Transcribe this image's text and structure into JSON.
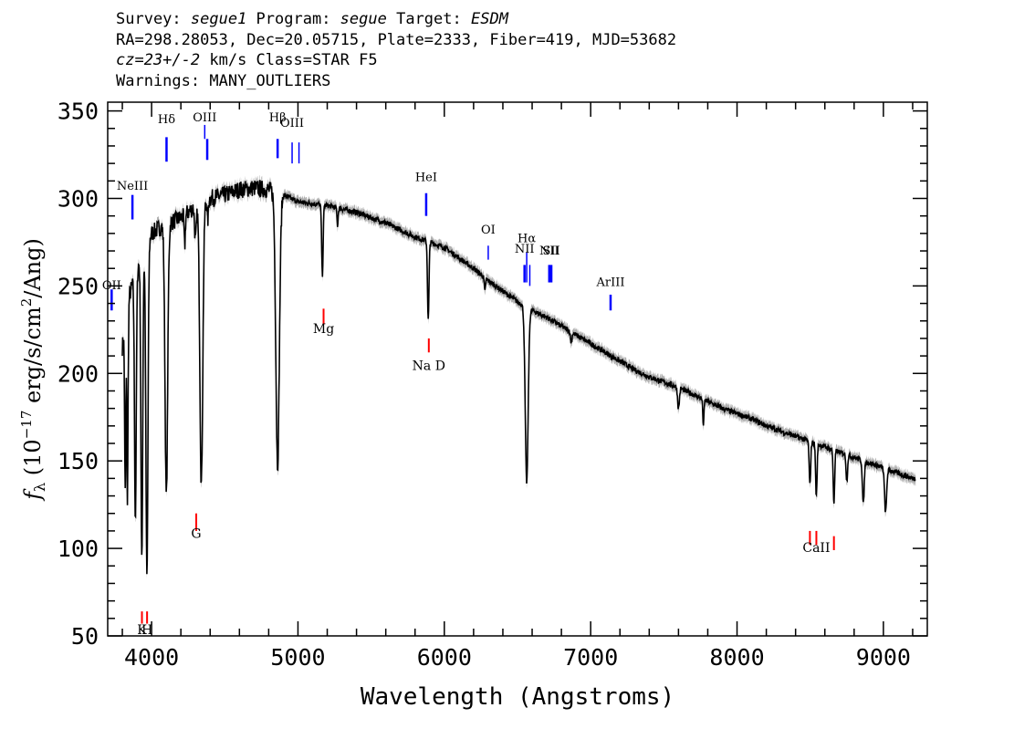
{
  "header": {
    "line1": {
      "survey_label": "Survey: ",
      "survey_value": "segue1",
      "program_label": " Program: ",
      "program_value": "segue",
      "target_label": " Target: ",
      "target_value": "ESDM"
    },
    "line2": "RA=298.28053, Dec=20.05715, Plate=2333, Fiber=419, MJD=53682",
    "line3": {
      "cz_value": "cz=23+/-2",
      "rest": " km/s Class=STAR F5"
    },
    "line4": "Warnings: MANY_OUTLIERS"
  },
  "chart_data": {
    "type": "line",
    "xlabel": "Wavelength (Angstroms)",
    "ylabel": {
      "prefix": "f",
      "sub": "λ",
      "unit_a": " (10",
      "exp": "−17",
      "unit_b": " erg/s/cm",
      "exp2": "2",
      "unit_c": "/Ang)"
    },
    "xlim": [
      3700,
      9300
    ],
    "ylim": [
      50,
      355
    ],
    "x_ticks": [
      4000,
      5000,
      6000,
      7000,
      8000,
      9000
    ],
    "x_tick_labels": [
      "4000",
      "5000",
      "6000",
      "7000",
      "8000",
      "9000"
    ],
    "y_ticks": [
      50,
      100,
      150,
      200,
      250,
      300,
      350
    ],
    "y_tick_labels": [
      "50",
      "100",
      "150",
      "200",
      "250",
      "300",
      "350"
    ],
    "continuum": {
      "x": [
        3800,
        3850,
        3900,
        3950,
        4000,
        4050,
        4100,
        4150,
        4200,
        4250,
        4300,
        4350,
        4400,
        4450,
        4500,
        4600,
        4700,
        4800,
        4900,
        5000,
        5100,
        5200,
        5300,
        5400,
        5500,
        5600,
        5700,
        5800,
        5900,
        6000,
        6100,
        6200,
        6300,
        6400,
        6500,
        6600,
        6700,
        6800,
        6900,
        7000,
        7100,
        7200,
        7300,
        7400,
        7500,
        7600,
        7700,
        7800,
        7900,
        8000,
        8100,
        8200,
        8300,
        8400,
        8500,
        8600,
        8700,
        8800,
        8900,
        9000,
        9100,
        9200
      ],
      "y": [
        215,
        245,
        260,
        270,
        280,
        283,
        285,
        287,
        289,
        292,
        296,
        298,
        300,
        301,
        302,
        305,
        306,
        305,
        302,
        298,
        297,
        296,
        294,
        292,
        289,
        286,
        282,
        278,
        275,
        272,
        266,
        260,
        253,
        247,
        241,
        236,
        232,
        227,
        222,
        217,
        212,
        207,
        202,
        198,
        195,
        192,
        188,
        184,
        180,
        177,
        174,
        170,
        167,
        164,
        161,
        158,
        155,
        152,
        149,
        146,
        143,
        140
      ]
    },
    "absorption_lines": [
      {
        "x": 3820,
        "depth": 95,
        "width": 4
      },
      {
        "x": 3835,
        "depth": 110,
        "width": 4
      },
      {
        "x": 3889,
        "depth": 140,
        "width": 6
      },
      {
        "x": 3933,
        "depth": 175,
        "width": 6
      },
      {
        "x": 3968,
        "depth": 190,
        "width": 7
      },
      {
        "x": 4101,
        "depth": 155,
        "width": 9
      },
      {
        "x": 4226,
        "depth": 18,
        "width": 4
      },
      {
        "x": 4300,
        "depth": 20,
        "width": 6
      },
      {
        "x": 4340,
        "depth": 160,
        "width": 10
      },
      {
        "x": 4384,
        "depth": 12,
        "width": 4
      },
      {
        "x": 4861,
        "depth": 155,
        "width": 12
      },
      {
        "x": 5167,
        "depth": 40,
        "width": 5
      },
      {
        "x": 5270,
        "depth": 10,
        "width": 4
      },
      {
        "x": 5890,
        "depth": 45,
        "width": 5
      },
      {
        "x": 6277,
        "depth": 8,
        "width": 4
      },
      {
        "x": 6563,
        "depth": 100,
        "width": 10
      },
      {
        "x": 6867,
        "depth": 6,
        "width": 5
      },
      {
        "x": 7600,
        "depth": 12,
        "width": 6
      },
      {
        "x": 7770,
        "depth": 15,
        "width": 4
      },
      {
        "x": 8498,
        "depth": 25,
        "width": 5
      },
      {
        "x": 8542,
        "depth": 30,
        "width": 5
      },
      {
        "x": 8662,
        "depth": 30,
        "width": 5
      },
      {
        "x": 8750,
        "depth": 15,
        "width": 5
      },
      {
        "x": 8863,
        "depth": 25,
        "width": 6
      },
      {
        "x": 9015,
        "depth": 25,
        "width": 7
      }
    ],
    "emission_markers": [
      {
        "label": "OII",
        "x": 3727,
        "label_y": 248,
        "top": 248,
        "bottom": 236,
        "thick": true
      },
      {
        "label": "NeIII",
        "x": 3869,
        "label_y": 305,
        "top": 302,
        "bottom": 288,
        "thick": true
      },
      {
        "label": "Hδ",
        "x": 4102,
        "label_y": 343,
        "top": 335,
        "bottom": 321,
        "thick": true
      },
      {
        "label": "OIII",
        "x": 4363,
        "label_y": 344,
        "top": 342,
        "bottom": 334,
        "thick": false
      },
      {
        "label": "",
        "x": 4380,
        "label_y": 0,
        "top": 334,
        "bottom": 322,
        "thick": true
      },
      {
        "label": "Hβ",
        "x": 4861,
        "label_y": 344,
        "top": 334,
        "bottom": 323,
        "thick": true
      },
      {
        "label": "OIII",
        "x": 4960,
        "label_y": 341,
        "top": 332,
        "bottom": 320,
        "thick": false
      },
      {
        "label": "",
        "x": 5007,
        "label_y": 0,
        "top": 332,
        "bottom": 320,
        "thick": false
      },
      {
        "label": "HeI",
        "x": 5876,
        "label_y": 310,
        "top": 303,
        "bottom": 290,
        "thick": true
      },
      {
        "label": "OI",
        "x": 6300,
        "label_y": 280,
        "top": 273,
        "bottom": 265,
        "thick": false
      },
      {
        "label": "NII",
        "x": 6548,
        "label_y": 269,
        "top": 262,
        "bottom": 252,
        "thick": true
      },
      {
        "label": "Hα",
        "x": 6563,
        "label_y": 275,
        "top": 269,
        "bottom": 252,
        "thick": false
      },
      {
        "label": "",
        "x": 6584,
        "label_y": 0,
        "top": 262,
        "bottom": 250,
        "thick": false
      },
      {
        "label": "NII",
        "x": 6717,
        "label_y": 268,
        "top": 262,
        "bottom": 252,
        "thick": true
      },
      {
        "label": "SII",
        "x": 6731,
        "label_y": 268,
        "top": 262,
        "bottom": 252,
        "thick": true
      },
      {
        "label": "ArIII",
        "x": 7136,
        "label_y": 250,
        "top": 245,
        "bottom": 236,
        "thick": true
      }
    ],
    "absorption_markers": [
      {
        "label": "K",
        "x": 3934,
        "label_y": 51,
        "top": 64,
        "bottom": 57
      },
      {
        "label": "H",
        "x": 3969,
        "label_y": 51,
        "top": 64,
        "bottom": 57
      },
      {
        "label": "G",
        "x": 4305,
        "label_y": 106,
        "top": 120,
        "bottom": 110
      },
      {
        "label": "Mg",
        "x": 5175,
        "label_y": 223,
        "top": 237,
        "bottom": 228
      },
      {
        "label": "Na D",
        "x": 5894,
        "label_y": 202,
        "top": 220,
        "bottom": 212
      },
      {
        "label": "",
        "x": 8498,
        "label_y": 0,
        "top": 110,
        "bottom": 102
      },
      {
        "label": "CaII",
        "x": 8542,
        "label_y": 98,
        "top": 110,
        "bottom": 102
      },
      {
        "label": "",
        "x": 8662,
        "label_y": 0,
        "top": 107,
        "bottom": 99
      }
    ],
    "colors": {
      "spectrum": "#000000",
      "error_band": "#b0b0b0",
      "emission": "#0000ff",
      "absorption": "#ff0000",
      "axis": "#000000"
    }
  }
}
